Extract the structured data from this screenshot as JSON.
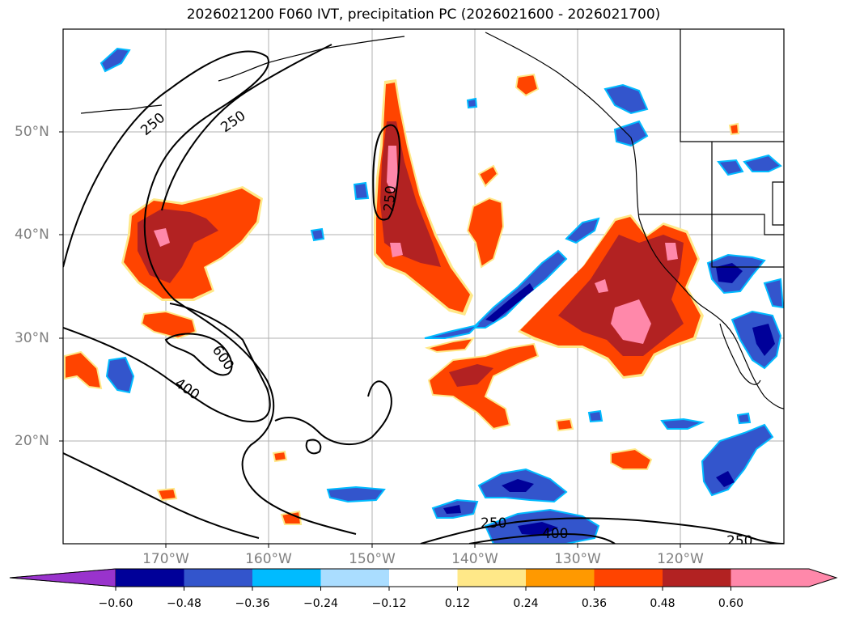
{
  "title": "2026021200 F060 IVT, precipitation PC (2026021600 - 2026021700)",
  "lat_labels": [
    "50°N",
    "40°N",
    "30°N",
    "20°N"
  ],
  "lon_labels": [
    "170°W",
    "160°W",
    "150°W",
    "140°W",
    "130°W",
    "120°W"
  ],
  "contour_labels": [
    "250",
    "250",
    "250",
    "600",
    "400",
    "250",
    "400",
    "250"
  ],
  "colorbar": {
    "ticks": [
      "−0.60",
      "−0.48",
      "−0.36",
      "−0.24",
      "−0.12",
      "0.12",
      "0.24",
      "0.36",
      "0.48",
      "0.60"
    ],
    "colors": [
      "#9933cc",
      "#000099",
      "#3355cc",
      "#00bbff",
      "#aaddff",
      "#ffffff",
      "#ffe888",
      "#ff9900",
      "#ff4400",
      "#b22222",
      "#ff88aa"
    ]
  },
  "palette": {
    "coast": "#000000",
    "grid": "#b0b0b0",
    "contour": "#000000"
  }
}
